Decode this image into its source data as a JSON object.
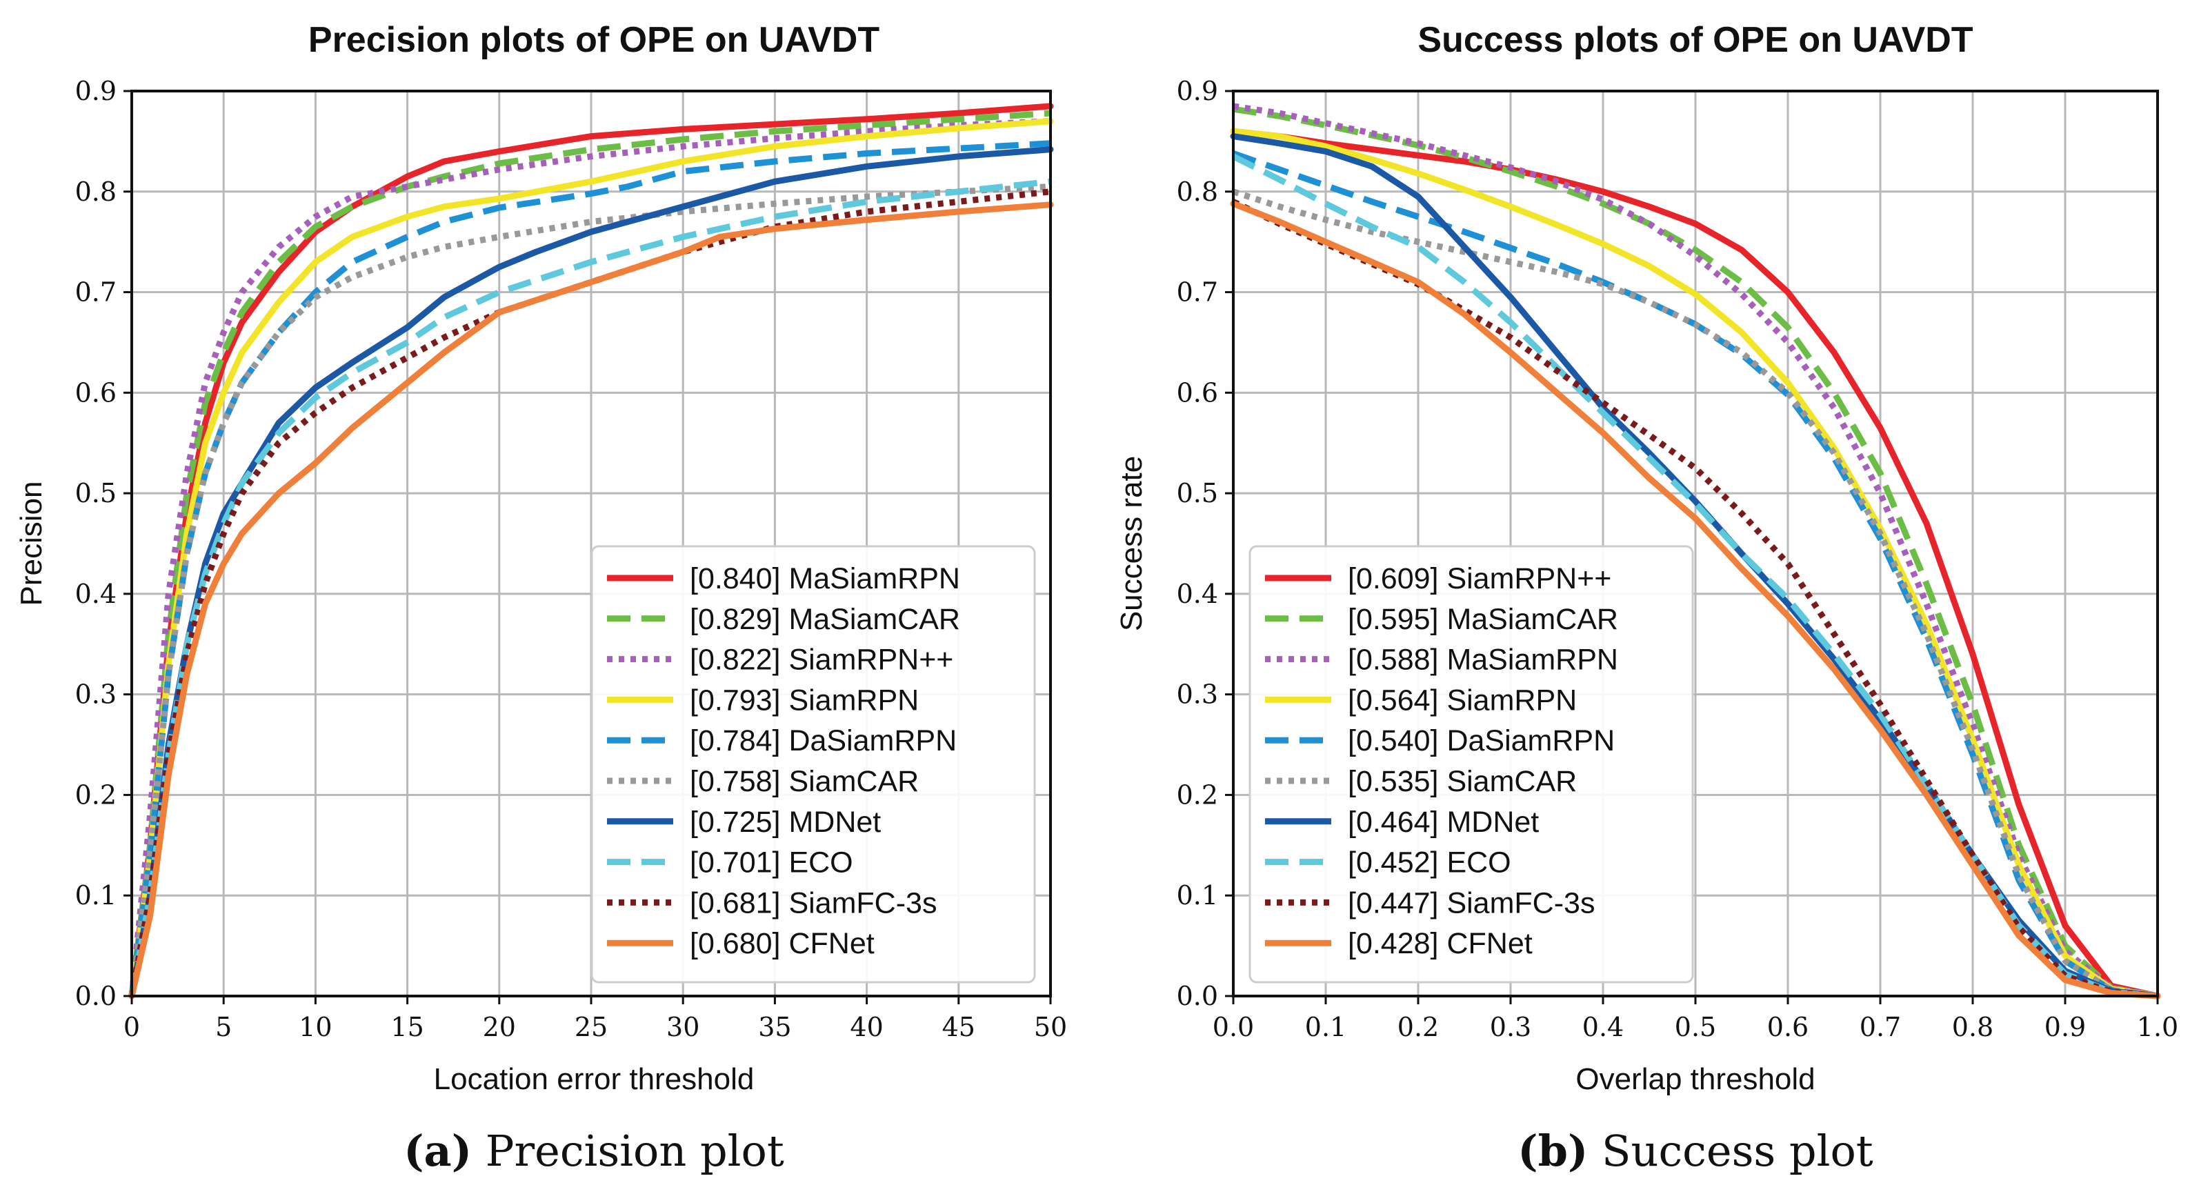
{
  "chart_data": [
    {
      "type": "line",
      "title": "Precision plots of OPE on UAVDT",
      "xlabel": "Location error threshold",
      "ylabel": "Precision",
      "xlim": [
        0,
        50
      ],
      "ylim": [
        0,
        0.9
      ],
      "xticks": [
        "0",
        "5",
        "10",
        "15",
        "20",
        "25",
        "30",
        "35",
        "40",
        "45",
        "50"
      ],
      "yticks": [
        "0.0",
        "0.1",
        "0.2",
        "0.3",
        "0.4",
        "0.5",
        "0.6",
        "0.7",
        "0.8",
        "0.9"
      ],
      "grid": true,
      "legend_position": "lower-right",
      "caption_label": "(a)",
      "caption_text": "Precision plot",
      "series": [
        {
          "name": "MaSiamRPN",
          "legend": "[0.840] MaSiamRPN",
          "color": "#e8242b",
          "dash": "solid",
          "x": [
            0,
            1,
            2,
            3,
            4,
            5,
            6,
            8,
            10,
            12,
            15,
            17,
            20,
            25,
            30,
            35,
            40,
            45,
            50
          ],
          "y": [
            0,
            0.15,
            0.35,
            0.48,
            0.57,
            0.63,
            0.67,
            0.72,
            0.76,
            0.785,
            0.815,
            0.83,
            0.84,
            0.855,
            0.862,
            0.867,
            0.872,
            0.878,
            0.885
          ]
        },
        {
          "name": "MaSiamCAR",
          "legend": "[0.829] MaSiamCAR",
          "color": "#6cbd45",
          "dash": "dashed",
          "x": [
            0,
            1,
            2,
            3,
            4,
            5,
            6,
            8,
            10,
            12,
            15,
            17,
            20,
            25,
            30,
            35,
            40,
            45,
            50
          ],
          "y": [
            0,
            0.15,
            0.36,
            0.5,
            0.59,
            0.64,
            0.68,
            0.73,
            0.765,
            0.785,
            0.805,
            0.815,
            0.828,
            0.842,
            0.852,
            0.86,
            0.866,
            0.872,
            0.878
          ]
        },
        {
          "name": "SiamRPN++",
          "legend": "[0.822] SiamRPN++",
          "color": "#a65fba",
          "dash": "dotted",
          "x": [
            0,
            1,
            2,
            3,
            4,
            5,
            6,
            8,
            10,
            12,
            15,
            17,
            20,
            25,
            30,
            35,
            40,
            45,
            50
          ],
          "y": [
            0,
            0.18,
            0.4,
            0.52,
            0.61,
            0.66,
            0.7,
            0.745,
            0.775,
            0.795,
            0.805,
            0.812,
            0.822,
            0.835,
            0.845,
            0.853,
            0.86,
            0.866,
            0.87
          ]
        },
        {
          "name": "SiamRPN",
          "legend": "[0.793] SiamRPN",
          "color": "#f2e527",
          "dash": "solid",
          "x": [
            0,
            1,
            2,
            3,
            4,
            5,
            6,
            8,
            10,
            12,
            15,
            17,
            20,
            25,
            30,
            35,
            40,
            45,
            50
          ],
          "y": [
            0,
            0.14,
            0.33,
            0.46,
            0.55,
            0.6,
            0.64,
            0.69,
            0.73,
            0.755,
            0.775,
            0.785,
            0.793,
            0.81,
            0.83,
            0.845,
            0.855,
            0.863,
            0.87
          ]
        },
        {
          "name": "DaSiamRPN",
          "legend": "[0.784] DaSiamRPN",
          "color": "#1e90d6",
          "dash": "dashed",
          "x": [
            0,
            1,
            2,
            3,
            4,
            5,
            6,
            8,
            10,
            12,
            15,
            17,
            20,
            25,
            27,
            30,
            35,
            40,
            45,
            50
          ],
          "y": [
            0,
            0.14,
            0.32,
            0.44,
            0.52,
            0.57,
            0.61,
            0.66,
            0.7,
            0.73,
            0.755,
            0.77,
            0.784,
            0.798,
            0.805,
            0.82,
            0.83,
            0.838,
            0.843,
            0.848
          ]
        },
        {
          "name": "SiamCAR",
          "legend": "[0.758] SiamCAR",
          "color": "#999999",
          "dash": "dotted",
          "x": [
            0,
            1,
            2,
            3,
            4,
            5,
            6,
            8,
            10,
            12,
            15,
            17,
            20,
            25,
            30,
            35,
            40,
            45,
            50
          ],
          "y": [
            0,
            0.14,
            0.32,
            0.44,
            0.52,
            0.57,
            0.61,
            0.66,
            0.695,
            0.715,
            0.735,
            0.745,
            0.755,
            0.77,
            0.78,
            0.788,
            0.795,
            0.8,
            0.805
          ]
        },
        {
          "name": "MDNet",
          "legend": "[0.725] MDNet",
          "color": "#1b58a6",
          "dash": "solid",
          "x": [
            0,
            1,
            2,
            3,
            4,
            5,
            6,
            8,
            10,
            12,
            15,
            17,
            20,
            22,
            25,
            30,
            35,
            40,
            45,
            50
          ],
          "y": [
            0,
            0.1,
            0.25,
            0.35,
            0.43,
            0.48,
            0.51,
            0.57,
            0.605,
            0.63,
            0.665,
            0.695,
            0.725,
            0.74,
            0.76,
            0.785,
            0.81,
            0.825,
            0.835,
            0.842
          ]
        },
        {
          "name": "ECO",
          "legend": "[0.701] ECO",
          "color": "#5ec8dc",
          "dash": "dashed",
          "x": [
            0,
            1,
            2,
            3,
            4,
            5,
            6,
            8,
            10,
            12,
            15,
            17,
            20,
            25,
            30,
            35,
            40,
            45,
            50
          ],
          "y": [
            0,
            0.1,
            0.24,
            0.35,
            0.42,
            0.47,
            0.51,
            0.56,
            0.595,
            0.62,
            0.65,
            0.675,
            0.7,
            0.73,
            0.755,
            0.775,
            0.79,
            0.8,
            0.81
          ]
        },
        {
          "name": "SiamFC-3s",
          "legend": "[0.681] SiamFC-3s",
          "color": "#7a1a1a",
          "dash": "dotted",
          "x": [
            0,
            1,
            2,
            3,
            4,
            5,
            6,
            8,
            10,
            12,
            15,
            17,
            20,
            25,
            30,
            35,
            40,
            45,
            50
          ],
          "y": [
            0,
            0.1,
            0.24,
            0.34,
            0.41,
            0.46,
            0.5,
            0.55,
            0.58,
            0.605,
            0.635,
            0.655,
            0.68,
            0.71,
            0.74,
            0.765,
            0.78,
            0.79,
            0.8
          ]
        },
        {
          "name": "CFNet",
          "legend": "[0.680] CFNet",
          "color": "#f07f3a",
          "dash": "solid",
          "x": [
            0,
            1,
            2,
            3,
            4,
            5,
            6,
            7,
            8,
            10,
            12,
            15,
            17,
            20,
            25,
            30,
            32,
            35,
            40,
            45,
            50
          ],
          "y": [
            0,
            0.08,
            0.22,
            0.32,
            0.39,
            0.43,
            0.46,
            0.48,
            0.5,
            0.53,
            0.565,
            0.61,
            0.64,
            0.68,
            0.71,
            0.74,
            0.755,
            0.763,
            0.772,
            0.78,
            0.787
          ]
        }
      ]
    },
    {
      "type": "line",
      "title": "Success plots of OPE on UAVDT",
      "xlabel": "Overlap threshold",
      "ylabel": "Success rate",
      "xlim": [
        0,
        1
      ],
      "ylim": [
        0,
        0.9
      ],
      "xticks": [
        "0.0",
        "0.1",
        "0.2",
        "0.3",
        "0.4",
        "0.5",
        "0.6",
        "0.7",
        "0.8",
        "0.9",
        "1.0"
      ],
      "yticks": [
        "0.0",
        "0.1",
        "0.2",
        "0.3",
        "0.4",
        "0.5",
        "0.6",
        "0.7",
        "0.8",
        "0.9"
      ],
      "grid": true,
      "legend_position": "lower-left",
      "caption_label": "(b)",
      "caption_text": "Success plot",
      "series": [
        {
          "name": "SiamRPN++",
          "legend": "[0.609] SiamRPN++",
          "color": "#e8242b",
          "dash": "solid",
          "x": [
            0,
            0.05,
            0.1,
            0.15,
            0.2,
            0.25,
            0.3,
            0.35,
            0.4,
            0.45,
            0.5,
            0.55,
            0.6,
            0.65,
            0.7,
            0.75,
            0.8,
            0.85,
            0.9,
            0.95,
            1.0
          ],
          "y": [
            0.86,
            0.855,
            0.848,
            0.842,
            0.836,
            0.83,
            0.822,
            0.812,
            0.8,
            0.785,
            0.768,
            0.742,
            0.7,
            0.64,
            0.565,
            0.47,
            0.34,
            0.19,
            0.07,
            0.01,
            0
          ]
        },
        {
          "name": "MaSiamCAR",
          "legend": "[0.595] MaSiamCAR",
          "color": "#6cbd45",
          "dash": "dashed",
          "x": [
            0,
            0.05,
            0.1,
            0.15,
            0.2,
            0.25,
            0.3,
            0.35,
            0.4,
            0.45,
            0.5,
            0.55,
            0.6,
            0.65,
            0.7,
            0.75,
            0.8,
            0.85,
            0.9,
            0.95,
            1.0
          ],
          "y": [
            0.882,
            0.875,
            0.866,
            0.856,
            0.846,
            0.834,
            0.82,
            0.805,
            0.788,
            0.768,
            0.742,
            0.71,
            0.665,
            0.6,
            0.52,
            0.41,
            0.29,
            0.15,
            0.05,
            0.008,
            0
          ]
        },
        {
          "name": "MaSiamRPN",
          "legend": "[0.588] MaSiamRPN",
          "color": "#a65fba",
          "dash": "dotted",
          "x": [
            0,
            0.05,
            0.1,
            0.15,
            0.2,
            0.25,
            0.3,
            0.35,
            0.4,
            0.45,
            0.5,
            0.55,
            0.6,
            0.65,
            0.7,
            0.75,
            0.8,
            0.85,
            0.9,
            0.95,
            1.0
          ],
          "y": [
            0.885,
            0.878,
            0.868,
            0.858,
            0.848,
            0.836,
            0.824,
            0.81,
            0.792,
            0.768,
            0.736,
            0.698,
            0.65,
            0.585,
            0.5,
            0.39,
            0.27,
            0.14,
            0.045,
            0.008,
            0
          ]
        },
        {
          "name": "SiamRPN",
          "legend": "[0.564] SiamRPN",
          "color": "#f2e527",
          "dash": "solid",
          "x": [
            0,
            0.05,
            0.1,
            0.15,
            0.2,
            0.25,
            0.3,
            0.35,
            0.4,
            0.45,
            0.5,
            0.55,
            0.6,
            0.65,
            0.7,
            0.75,
            0.8,
            0.85,
            0.9,
            0.95,
            1.0
          ],
          "y": [
            0.86,
            0.855,
            0.845,
            0.832,
            0.818,
            0.802,
            0.785,
            0.767,
            0.748,
            0.726,
            0.698,
            0.66,
            0.61,
            0.545,
            0.465,
            0.37,
            0.255,
            0.13,
            0.04,
            0.007,
            0
          ]
        },
        {
          "name": "DaSiamRPN",
          "legend": "[0.540] DaSiamRPN",
          "color": "#1e90d6",
          "dash": "dashed",
          "x": [
            0,
            0.05,
            0.1,
            0.15,
            0.2,
            0.25,
            0.3,
            0.35,
            0.4,
            0.45,
            0.5,
            0.55,
            0.6,
            0.65,
            0.7,
            0.75,
            0.8,
            0.85,
            0.9,
            0.95,
            1.0
          ],
          "y": [
            0.838,
            0.822,
            0.806,
            0.79,
            0.775,
            0.76,
            0.744,
            0.728,
            0.71,
            0.69,
            0.668,
            0.638,
            0.598,
            0.535,
            0.455,
            0.355,
            0.24,
            0.115,
            0.035,
            0.006,
            0
          ]
        },
        {
          "name": "SiamCAR",
          "legend": "[0.535] SiamCAR",
          "color": "#999999",
          "dash": "dotted",
          "x": [
            0,
            0.05,
            0.1,
            0.15,
            0.2,
            0.25,
            0.3,
            0.35,
            0.4,
            0.45,
            0.5,
            0.55,
            0.6,
            0.65,
            0.7,
            0.75,
            0.8,
            0.85,
            0.9,
            0.95,
            1.0
          ],
          "y": [
            0.8,
            0.785,
            0.772,
            0.76,
            0.75,
            0.74,
            0.73,
            0.72,
            0.708,
            0.69,
            0.668,
            0.64,
            0.6,
            0.54,
            0.46,
            0.36,
            0.245,
            0.12,
            0.035,
            0.006,
            0
          ]
        },
        {
          "name": "MDNet",
          "legend": "[0.464] MDNet",
          "color": "#1b58a6",
          "dash": "solid",
          "x": [
            0,
            0.05,
            0.1,
            0.15,
            0.2,
            0.25,
            0.3,
            0.35,
            0.4,
            0.45,
            0.5,
            0.55,
            0.6,
            0.65,
            0.7,
            0.75,
            0.8,
            0.85,
            0.9,
            0.95,
            1.0
          ],
          "y": [
            0.855,
            0.848,
            0.84,
            0.825,
            0.795,
            0.745,
            0.695,
            0.64,
            0.585,
            0.54,
            0.492,
            0.44,
            0.39,
            0.335,
            0.275,
            0.21,
            0.14,
            0.075,
            0.025,
            0.005,
            0
          ]
        },
        {
          "name": "ECO",
          "legend": "[0.452] ECO",
          "color": "#5ec8dc",
          "dash": "dashed",
          "x": [
            0,
            0.05,
            0.1,
            0.15,
            0.2,
            0.25,
            0.3,
            0.35,
            0.4,
            0.45,
            0.5,
            0.55,
            0.6,
            0.65,
            0.7,
            0.75,
            0.8,
            0.85,
            0.9,
            0.95,
            1.0
          ],
          "y": [
            0.835,
            0.812,
            0.788,
            0.765,
            0.745,
            0.71,
            0.67,
            0.625,
            0.58,
            0.535,
            0.49,
            0.44,
            0.395,
            0.34,
            0.28,
            0.21,
            0.14,
            0.07,
            0.022,
            0.004,
            0
          ]
        },
        {
          "name": "SiamFC-3s",
          "legend": "[0.447] SiamFC-3s",
          "color": "#7a1a1a",
          "dash": "dotted",
          "x": [
            0,
            0.05,
            0.1,
            0.15,
            0.2,
            0.25,
            0.3,
            0.35,
            0.4,
            0.45,
            0.5,
            0.55,
            0.6,
            0.65,
            0.7,
            0.75,
            0.8,
            0.85,
            0.9,
            0.95,
            1.0
          ],
          "y": [
            0.79,
            0.768,
            0.748,
            0.728,
            0.708,
            0.682,
            0.655,
            0.622,
            0.59,
            0.558,
            0.525,
            0.48,
            0.43,
            0.36,
            0.29,
            0.215,
            0.14,
            0.068,
            0.02,
            0.004,
            0
          ]
        },
        {
          "name": "CFNet",
          "legend": "[0.428] CFNet",
          "color": "#f07f3a",
          "dash": "solid",
          "x": [
            0,
            0.05,
            0.1,
            0.15,
            0.2,
            0.25,
            0.3,
            0.35,
            0.4,
            0.45,
            0.5,
            0.55,
            0.6,
            0.65,
            0.7,
            0.75,
            0.8,
            0.85,
            0.9,
            0.95,
            1.0
          ],
          "y": [
            0.788,
            0.77,
            0.75,
            0.73,
            0.71,
            0.678,
            0.64,
            0.6,
            0.56,
            0.515,
            0.475,
            0.425,
            0.378,
            0.325,
            0.265,
            0.2,
            0.13,
            0.06,
            0.016,
            0.003,
            0
          ]
        }
      ]
    }
  ]
}
